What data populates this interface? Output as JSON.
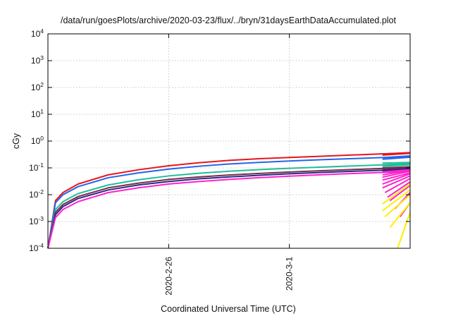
{
  "chart_data": {
    "type": "line",
    "title": "/data/run/goesPlots/archive/2020-03-23/flux/../bryn/31daysEarthDataAccumulated.plot",
    "xlabel": "Coordinated Universal Time (UTC)",
    "ylabel": "cGy",
    "y_scale": "log",
    "ylim": [
      0.0001,
      10000
    ],
    "y_ticks": [
      {
        "value": 0.0001,
        "base": "10",
        "exp": "-4"
      },
      {
        "value": 0.001,
        "base": "10",
        "exp": "-3"
      },
      {
        "value": 0.01,
        "base": "10",
        "exp": "-2"
      },
      {
        "value": 0.1,
        "base": "10",
        "exp": "-1"
      },
      {
        "value": 1,
        "base": "10",
        "exp": "0"
      },
      {
        "value": 10,
        "base": "10",
        "exp": "1"
      },
      {
        "value": 100,
        "base": "10",
        "exp": "2"
      },
      {
        "value": 1000,
        "base": "10",
        "exp": "3"
      },
      {
        "value": 10000,
        "base": "10",
        "exp": "4"
      }
    ],
    "xlim": [
      "2020-02-22T00:00",
      "2020-03-05T00:00"
    ],
    "x_ticks": [
      {
        "value": "2020-02-26T00:00",
        "label": "2020-2-26"
      },
      {
        "value": "2020-03-01T00:00",
        "label": "2020-3-1"
      }
    ],
    "grid": true,
    "legend": "none",
    "series": [
      {
        "color": "#e8141c",
        "x": [
          "2020-02-22T00:00",
          "2020-02-22T06:00",
          "2020-02-22T12:00",
          "2020-02-23T00:00",
          "2020-02-24T00:00",
          "2020-02-25T00:00",
          "2020-02-26T00:00",
          "2020-02-27T00:00",
          "2020-02-28T00:00",
          "2020-02-29T00:00",
          "2020-03-01T00:00",
          "2020-03-02T00:00",
          "2020-03-03T00:00",
          "2020-03-04T00:00",
          "2020-03-05T00:00"
        ],
        "values": [
          0.0001,
          0.006,
          0.012,
          0.025,
          0.055,
          0.085,
          0.12,
          0.155,
          0.19,
          0.22,
          0.245,
          0.27,
          0.3,
          0.33,
          0.36
        ]
      },
      {
        "color": "#2266e8",
        "x": [
          "2020-02-22T00:00",
          "2020-02-22T06:00",
          "2020-02-22T12:00",
          "2020-02-23T00:00",
          "2020-02-24T00:00",
          "2020-02-25T00:00",
          "2020-02-26T00:00",
          "2020-02-27T00:00",
          "2020-02-28T00:00",
          "2020-02-29T00:00",
          "2020-03-01T00:00",
          "2020-03-02T00:00",
          "2020-03-03T00:00",
          "2020-03-04T00:00",
          "2020-03-05T00:00"
        ],
        "values": [
          0.0001,
          0.005,
          0.01,
          0.02,
          0.043,
          0.065,
          0.09,
          0.115,
          0.14,
          0.16,
          0.18,
          0.2,
          0.22,
          0.24,
          0.26
        ]
      },
      {
        "color": "#1fbf9a",
        "x": [
          "2020-02-22T00:00",
          "2020-02-22T06:00",
          "2020-02-22T12:00",
          "2020-02-23T00:00",
          "2020-02-24T00:00",
          "2020-02-25T00:00",
          "2020-02-26T00:00",
          "2020-02-27T00:00",
          "2020-02-28T00:00",
          "2020-02-29T00:00",
          "2020-03-01T00:00",
          "2020-03-02T00:00",
          "2020-03-03T00:00",
          "2020-03-04T00:00",
          "2020-03-05T00:00"
        ],
        "values": [
          0.0001,
          0.0028,
          0.0055,
          0.011,
          0.023,
          0.036,
          0.05,
          0.063,
          0.075,
          0.086,
          0.096,
          0.106,
          0.117,
          0.128,
          0.14
        ]
      },
      {
        "color": "#7a2a4a",
        "x": [
          "2020-02-22T00:00",
          "2020-02-22T06:00",
          "2020-02-22T12:00",
          "2020-02-23T00:00",
          "2020-02-24T00:00",
          "2020-02-25T00:00",
          "2020-02-26T00:00",
          "2020-02-27T00:00",
          "2020-02-28T00:00",
          "2020-02-29T00:00",
          "2020-03-01T00:00",
          "2020-03-02T00:00",
          "2020-03-03T00:00",
          "2020-03-04T00:00",
          "2020-03-05T00:00"
        ],
        "values": [
          0.0001,
          0.0022,
          0.0043,
          0.0085,
          0.018,
          0.027,
          0.037,
          0.046,
          0.054,
          0.062,
          0.07,
          0.078,
          0.086,
          0.094,
          0.102
        ]
      },
      {
        "color": "#2a2a88",
        "x": [
          "2020-02-22T00:00",
          "2020-02-22T06:00",
          "2020-02-22T12:00",
          "2020-02-23T00:00",
          "2020-02-24T00:00",
          "2020-02-25T00:00",
          "2020-02-26T00:00",
          "2020-02-27T00:00",
          "2020-02-28T00:00",
          "2020-02-29T00:00",
          "2020-03-01T00:00",
          "2020-03-02T00:00",
          "2020-03-03T00:00",
          "2020-03-04T00:00",
          "2020-03-05T00:00"
        ],
        "values": [
          0.0001,
          0.0018,
          0.0036,
          0.0072,
          0.015,
          0.023,
          0.031,
          0.039,
          0.046,
          0.053,
          0.06,
          0.067,
          0.074,
          0.081,
          0.088
        ]
      },
      {
        "color": "#ff22cc",
        "x": [
          "2020-02-22T00:00",
          "2020-02-22T06:00",
          "2020-02-22T12:00",
          "2020-02-23T00:00",
          "2020-02-24T00:00",
          "2020-02-25T00:00",
          "2020-02-26T00:00",
          "2020-02-27T00:00",
          "2020-02-28T00:00",
          "2020-02-29T00:00",
          "2020-03-01T00:00",
          "2020-03-02T00:00",
          "2020-03-03T00:00",
          "2020-03-04T00:00",
          "2020-03-05T00:00"
        ],
        "values": [
          0.0001,
          0.0014,
          0.0028,
          0.0055,
          0.012,
          0.018,
          0.025,
          0.031,
          0.037,
          0.043,
          0.049,
          0.055,
          0.061,
          0.067,
          0.074
        ]
      }
    ],
    "recent_segments": [
      {
        "color": "#e8141c",
        "x": [
          "2020-03-04T02:00",
          "2020-03-05T00:00"
        ],
        "values": [
          0.33,
          0.37
        ]
      },
      {
        "color": "#e8141c",
        "x": [
          "2020-03-04T02:00",
          "2020-03-05T00:00"
        ],
        "values": [
          0.3,
          0.35
        ]
      },
      {
        "color": "#2266e8",
        "x": [
          "2020-03-04T02:00",
          "2020-03-05T00:00"
        ],
        "values": [
          0.24,
          0.28
        ]
      },
      {
        "color": "#2266e8",
        "x": [
          "2020-03-04T02:00",
          "2020-03-05T00:00"
        ],
        "values": [
          0.21,
          0.25
        ]
      },
      {
        "color": "#1fbf9a",
        "x": [
          "2020-03-04T02:00",
          "2020-03-05T00:00"
        ],
        "values": [
          0.15,
          0.16
        ]
      },
      {
        "color": "#1fbf9a",
        "x": [
          "2020-03-04T02:00",
          "2020-03-05T00:00"
        ],
        "values": [
          0.13,
          0.145
        ]
      },
      {
        "color": "#1fbf9a",
        "x": [
          "2020-03-04T02:00",
          "2020-03-05T00:00"
        ],
        "values": [
          0.115,
          0.13
        ]
      },
      {
        "color": "#7a2a4a",
        "x": [
          "2020-03-04T02:00",
          "2020-03-05T00:00"
        ],
        "values": [
          0.1,
          0.11
        ]
      },
      {
        "color": "#7a2a4a",
        "x": [
          "2020-03-04T02:00",
          "2020-03-05T00:00"
        ],
        "values": [
          0.09,
          0.105
        ]
      },
      {
        "color": "#2a2a88",
        "x": [
          "2020-03-04T02:00",
          "2020-03-05T00:00"
        ],
        "values": [
          0.082,
          0.095
        ]
      },
      {
        "color": "#2a2a88",
        "x": [
          "2020-03-04T02:00",
          "2020-03-05T00:00"
        ],
        "values": [
          0.075,
          0.09
        ]
      },
      {
        "color": "#ff22cc",
        "x": [
          "2020-03-04T02:00",
          "2020-03-05T00:00"
        ],
        "values": [
          0.07,
          0.085
        ]
      },
      {
        "color": "#ff22cc",
        "x": [
          "2020-03-04T02:00",
          "2020-03-05T00:00"
        ],
        "values": [
          0.055,
          0.08
        ]
      },
      {
        "color": "#ff22cc",
        "x": [
          "2020-03-04T02:00",
          "2020-03-05T00:00"
        ],
        "values": [
          0.045,
          0.075
        ]
      },
      {
        "color": "#ff22cc",
        "x": [
          "2020-03-04T02:00",
          "2020-03-05T00:00"
        ],
        "values": [
          0.035,
          0.065
        ]
      },
      {
        "color": "#ff22cc",
        "x": [
          "2020-03-04T02:00",
          "2020-03-05T00:00"
        ],
        "values": [
          0.025,
          0.06
        ]
      },
      {
        "color": "#ff22cc",
        "x": [
          "2020-03-04T02:00",
          "2020-03-05T00:00"
        ],
        "values": [
          0.018,
          0.05
        ]
      },
      {
        "color": "#ff22cc",
        "x": [
          "2020-03-04T04:00",
          "2020-03-05T00:00"
        ],
        "values": [
          0.012,
          0.04
        ]
      },
      {
        "color": "#ff22cc",
        "x": [
          "2020-03-04T06:00",
          "2020-03-05T00:00"
        ],
        "values": [
          0.008,
          0.03
        ]
      },
      {
        "color": "#ff22cc",
        "x": [
          "2020-03-04T08:00",
          "2020-03-05T00:00"
        ],
        "values": [
          0.006,
          0.022
        ]
      },
      {
        "color": "#ff22cc",
        "x": [
          "2020-03-04T12:00",
          "2020-03-05T00:00"
        ],
        "values": [
          0.003,
          0.012
        ]
      },
      {
        "color": "#ff22cc",
        "x": [
          "2020-03-04T16:00",
          "2020-03-05T00:00"
        ],
        "values": [
          0.0015,
          0.005
        ]
      },
      {
        "color": "#ffee00",
        "x": [
          "2020-03-04T02:00",
          "2020-03-05T00:00"
        ],
        "values": [
          0.0045,
          0.025
        ]
      },
      {
        "color": "#ffee00",
        "x": [
          "2020-03-04T02:00",
          "2020-03-05T00:00"
        ],
        "values": [
          0.0025,
          0.015
        ]
      },
      {
        "color": "#ffee00",
        "x": [
          "2020-03-04T04:00",
          "2020-03-05T00:00"
        ],
        "values": [
          0.0015,
          0.01
        ]
      },
      {
        "color": "#ffee00",
        "x": [
          "2020-03-04T08:00",
          "2020-03-05T00:00"
        ],
        "values": [
          0.0006,
          0.005
        ]
      },
      {
        "color": "#ffee00",
        "x": [
          "2020-03-04T14:00",
          "2020-03-05T00:00"
        ],
        "values": [
          0.0001,
          0.0022
        ]
      }
    ]
  }
}
